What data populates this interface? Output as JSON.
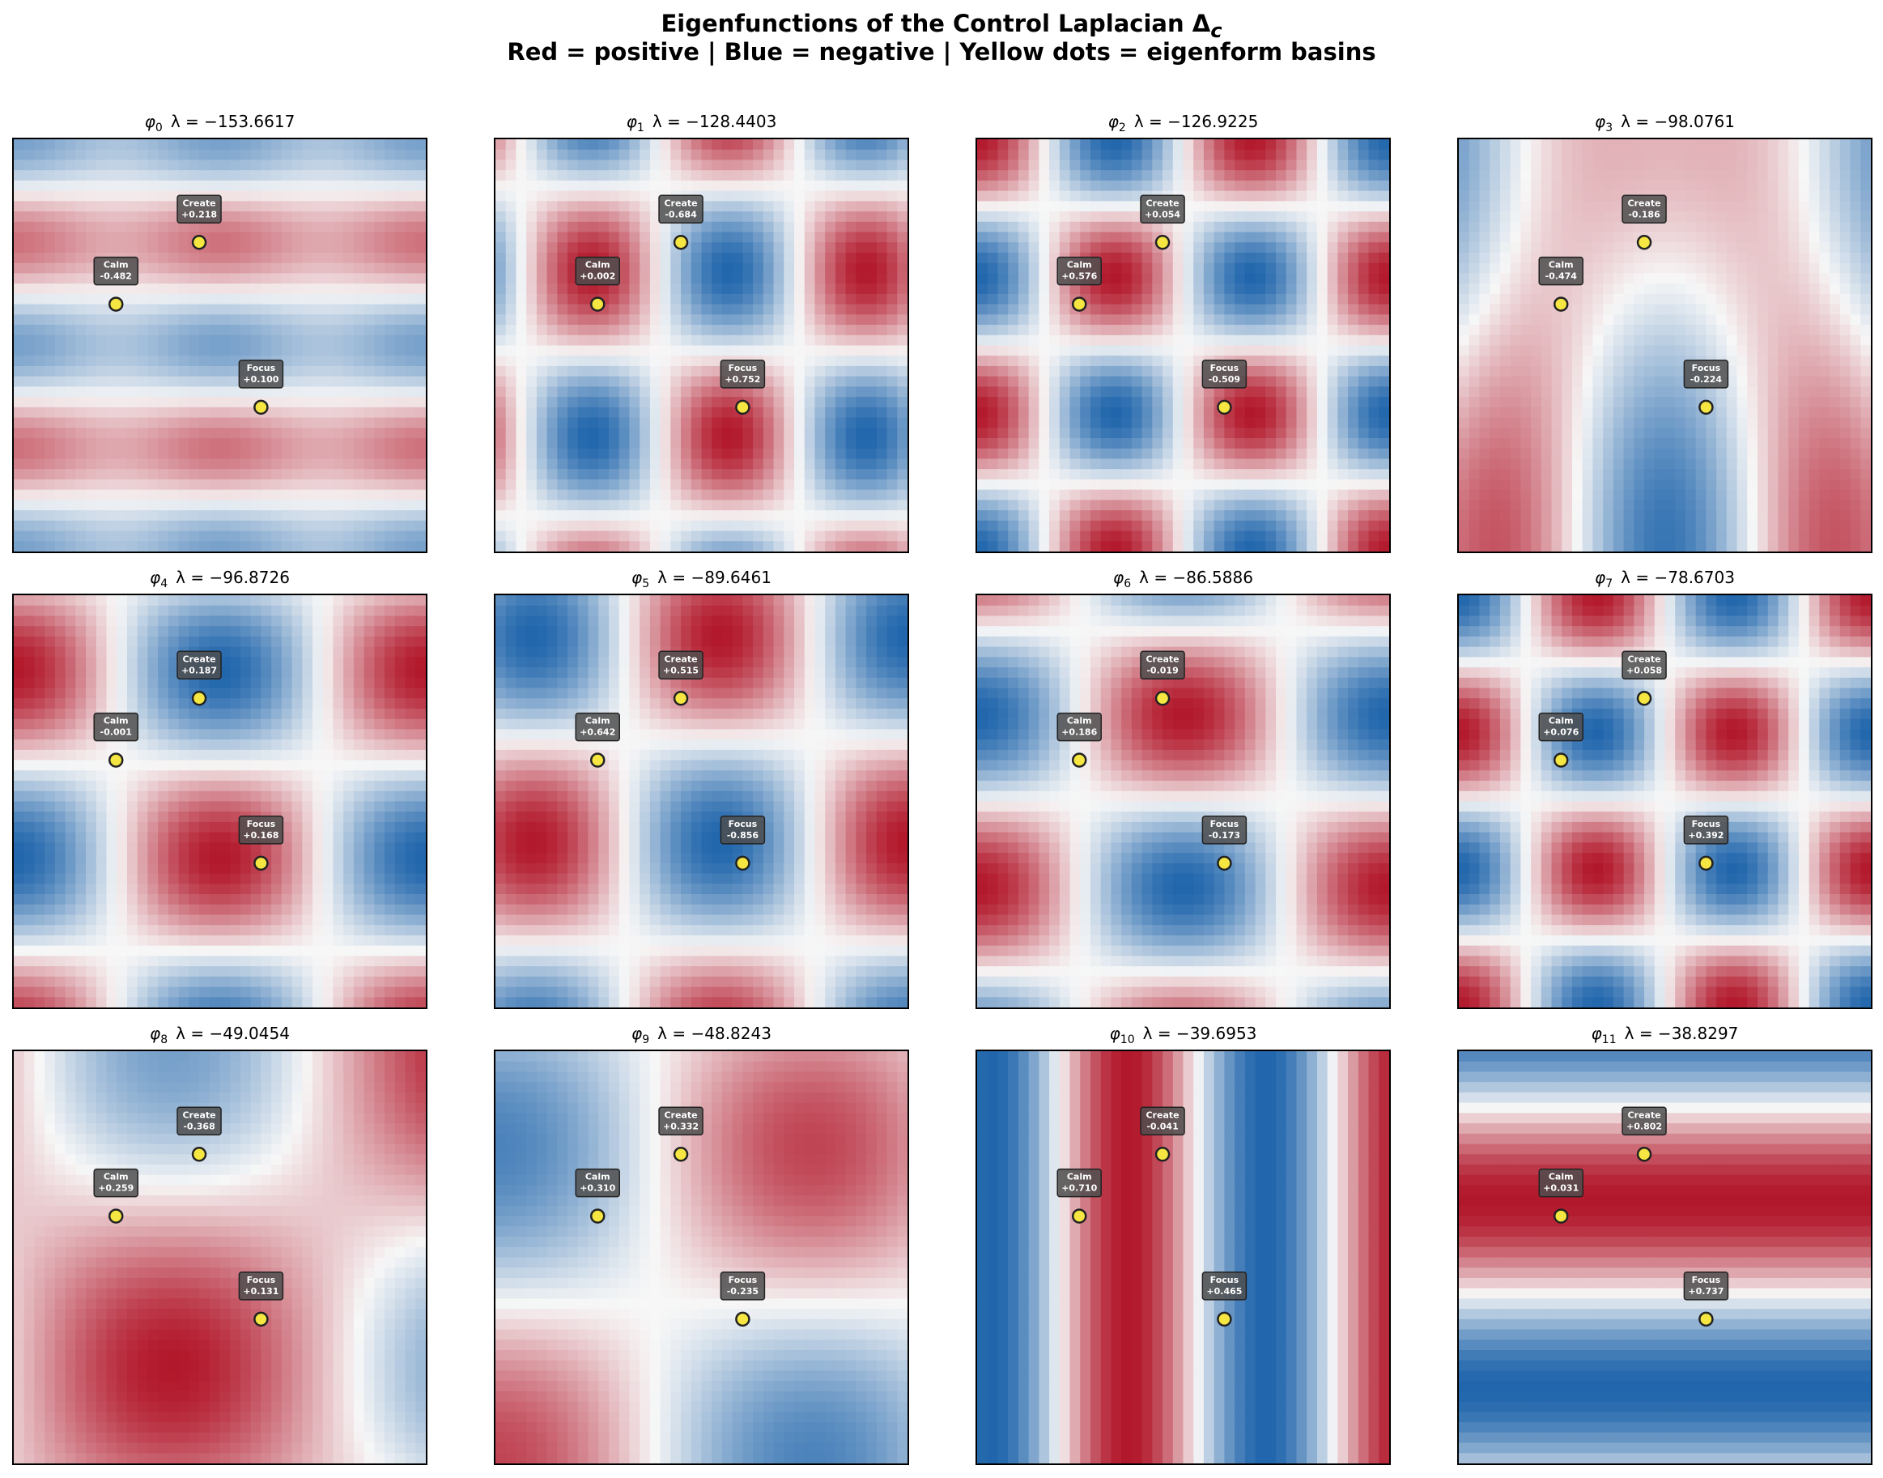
{
  "title": {
    "line1": "Eigenfunctions of the Control Laplacian Δ",
    "line1_sub": "c",
    "line2": "Red = positive | Blue = negative | Yellow dots = eigenform basins"
  },
  "colors": {
    "positive": "#b2182b",
    "negative": "#2166ac",
    "zero": "#f7f7f7",
    "basin_marker": "#f5e642",
    "label_box": "#4d4d4d"
  },
  "chart_data": [
    {
      "type": "heatmap",
      "phi": "φ",
      "index": "0",
      "lambda_label": "λ = −153.6617",
      "lambda": -153.6617,
      "basins": [
        {
          "name": "Calm",
          "value": "-0.482"
        },
        {
          "name": "Create",
          "value": "+0.218"
        },
        {
          "name": "Focus",
          "value": "+0.100"
        }
      ]
    },
    {
      "type": "heatmap",
      "phi": "φ",
      "index": "1",
      "lambda_label": "λ = −128.4403",
      "lambda": -128.4403,
      "basins": [
        {
          "name": "Calm",
          "value": "+0.002"
        },
        {
          "name": "Create",
          "value": "-0.684"
        },
        {
          "name": "Focus",
          "value": "+0.752"
        }
      ]
    },
    {
      "type": "heatmap",
      "phi": "φ",
      "index": "2",
      "lambda_label": "λ = −126.9225",
      "lambda": -126.9225,
      "basins": [
        {
          "name": "Calm",
          "value": "+0.576"
        },
        {
          "name": "Create",
          "value": "+0.054"
        },
        {
          "name": "Focus",
          "value": "-0.509"
        }
      ]
    },
    {
      "type": "heatmap",
      "phi": "φ",
      "index": "3",
      "lambda_label": "λ = −98.0761",
      "lambda": -98.0761,
      "basins": [
        {
          "name": "Calm",
          "value": "-0.474"
        },
        {
          "name": "Create",
          "value": "-0.186"
        },
        {
          "name": "Focus",
          "value": "-0.224"
        }
      ]
    },
    {
      "type": "heatmap",
      "phi": "φ",
      "index": "4",
      "lambda_label": "λ = −96.8726",
      "lambda": -96.8726,
      "basins": [
        {
          "name": "Calm",
          "value": "-0.001"
        },
        {
          "name": "Create",
          "value": "+0.187"
        },
        {
          "name": "Focus",
          "value": "+0.168"
        }
      ]
    },
    {
      "type": "heatmap",
      "phi": "φ",
      "index": "5",
      "lambda_label": "λ = −89.6461",
      "lambda": -89.6461,
      "basins": [
        {
          "name": "Calm",
          "value": "+0.642"
        },
        {
          "name": "Create",
          "value": "+0.515"
        },
        {
          "name": "Focus",
          "value": "-0.856"
        }
      ]
    },
    {
      "type": "heatmap",
      "phi": "φ",
      "index": "6",
      "lambda_label": "λ = −86.5886",
      "lambda": -86.5886,
      "basins": [
        {
          "name": "Calm",
          "value": "+0.186"
        },
        {
          "name": "Create",
          "value": "-0.019"
        },
        {
          "name": "Focus",
          "value": "-0.173"
        }
      ]
    },
    {
      "type": "heatmap",
      "phi": "φ",
      "index": "7",
      "lambda_label": "λ = −78.6703",
      "lambda": -78.6703,
      "basins": [
        {
          "name": "Calm",
          "value": "+0.076"
        },
        {
          "name": "Create",
          "value": "+0.058"
        },
        {
          "name": "Focus",
          "value": "+0.392"
        }
      ]
    },
    {
      "type": "heatmap",
      "phi": "φ",
      "index": "8",
      "lambda_label": "λ = −49.0454",
      "lambda": -49.0454,
      "basins": [
        {
          "name": "Calm",
          "value": "+0.259"
        },
        {
          "name": "Create",
          "value": "-0.368"
        },
        {
          "name": "Focus",
          "value": "+0.131"
        }
      ]
    },
    {
      "type": "heatmap",
      "phi": "φ",
      "index": "9",
      "lambda_label": "λ = −48.8243",
      "lambda": -48.8243,
      "basins": [
        {
          "name": "Calm",
          "value": "+0.310"
        },
        {
          "name": "Create",
          "value": "+0.332"
        },
        {
          "name": "Focus",
          "value": "-0.235"
        }
      ]
    },
    {
      "type": "heatmap",
      "phi": "φ",
      "index": "10",
      "lambda_label": "λ = −39.6953",
      "lambda": -39.6953,
      "basins": [
        {
          "name": "Calm",
          "value": "+0.710"
        },
        {
          "name": "Create",
          "value": "-0.041"
        },
        {
          "name": "Focus",
          "value": "+0.465"
        }
      ]
    },
    {
      "type": "heatmap",
      "phi": "φ",
      "index": "11",
      "lambda_label": "λ = −38.8297",
      "lambda": -38.8297,
      "basins": [
        {
          "name": "Calm",
          "value": "+0.031"
        },
        {
          "name": "Create",
          "value": "+0.802"
        },
        {
          "name": "Focus",
          "value": "+0.737"
        }
      ]
    }
  ]
}
